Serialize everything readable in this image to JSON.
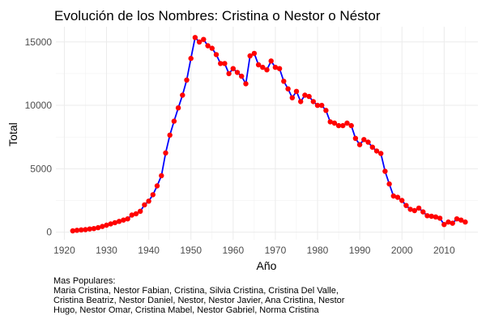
{
  "chart_data": {
    "type": "line",
    "title": "Evolución de los Nombres: Cristina o Nestor o Néstor",
    "xlabel": "Año",
    "ylabel": "Total",
    "xlim": [
      1918,
      2018
    ],
    "ylim": [
      -600,
      16200
    ],
    "x_ticks": [
      1920,
      1930,
      1940,
      1950,
      1960,
      1970,
      1980,
      1990,
      2000,
      2010
    ],
    "y_ticks": [
      0,
      5000,
      10000,
      15000
    ],
    "y_tick_labels": [
      "0",
      "5000",
      "10000",
      "15000"
    ],
    "grid": true,
    "line_color": "#0000ff",
    "point_color": "#ff0000",
    "caption_lines": [
      "Mas Populares:",
      "Maria Cristina, Nestor Fabian, Cristina, Silvia Cristina, Cristina Del Valle,",
      "Cristina Beatriz, Nestor Daniel, Nestor, Nestor Javier, Ana Cristina, Nestor",
      "Hugo, Nestor Omar, Cristina Mabel, Nestor Gabriel, Norma Cristina"
    ],
    "series": [
      {
        "x": [
          1922,
          1923,
          1924,
          1925,
          1926,
          1927,
          1928,
          1929,
          1930,
          1931,
          1932,
          1933,
          1934,
          1935,
          1936,
          1937,
          1938,
          1939,
          1940,
          1941,
          1942,
          1943,
          1944,
          1945,
          1946,
          1947,
          1948,
          1949,
          1950,
          1951,
          1952,
          1953,
          1954,
          1955,
          1956,
          1957,
          1958,
          1959,
          1960,
          1961,
          1962,
          1963,
          1964,
          1965,
          1966,
          1967,
          1968,
          1969,
          1970,
          1971,
          1972,
          1973,
          1974,
          1975,
          1976,
          1977,
          1978,
          1979,
          1980,
          1981,
          1982,
          1983,
          1984,
          1985,
          1986,
          1987,
          1988,
          1989,
          1990,
          1991,
          1992,
          1993,
          1994,
          1995,
          1996,
          1997,
          1998,
          1999,
          2000,
          2001,
          2002,
          2003,
          2004,
          2005,
          2006,
          2007,
          2008,
          2009,
          2010,
          2011,
          2012,
          2013,
          2014,
          2015
        ],
        "y": [
          100,
          150,
          180,
          200,
          250,
          280,
          350,
          450,
          550,
          650,
          750,
          850,
          950,
          1050,
          1350,
          1450,
          1650,
          2150,
          2450,
          2950,
          3650,
          4450,
          6250,
          7650,
          8750,
          9800,
          10800,
          12000,
          13700,
          15350,
          15000,
          15200,
          14700,
          14500,
          14000,
          13300,
          13300,
          12500,
          12900,
          12600,
          12300,
          11700,
          13900,
          14100,
          13200,
          13000,
          12800,
          13500,
          13000,
          12900,
          11900,
          11300,
          10600,
          11100,
          10300,
          10800,
          10700,
          10300,
          10000,
          10000,
          9600,
          8700,
          8600,
          8400,
          8400,
          8600,
          8400,
          7400,
          6900,
          7300,
          7100,
          6700,
          6400,
          6200,
          4800,
          3800,
          2850,
          2750,
          2500,
          2100,
          1800,
          1700,
          1900,
          1600,
          1300,
          1250,
          1200,
          1100,
          600,
          800,
          700,
          1050,
          950,
          800
        ]
      }
    ]
  }
}
